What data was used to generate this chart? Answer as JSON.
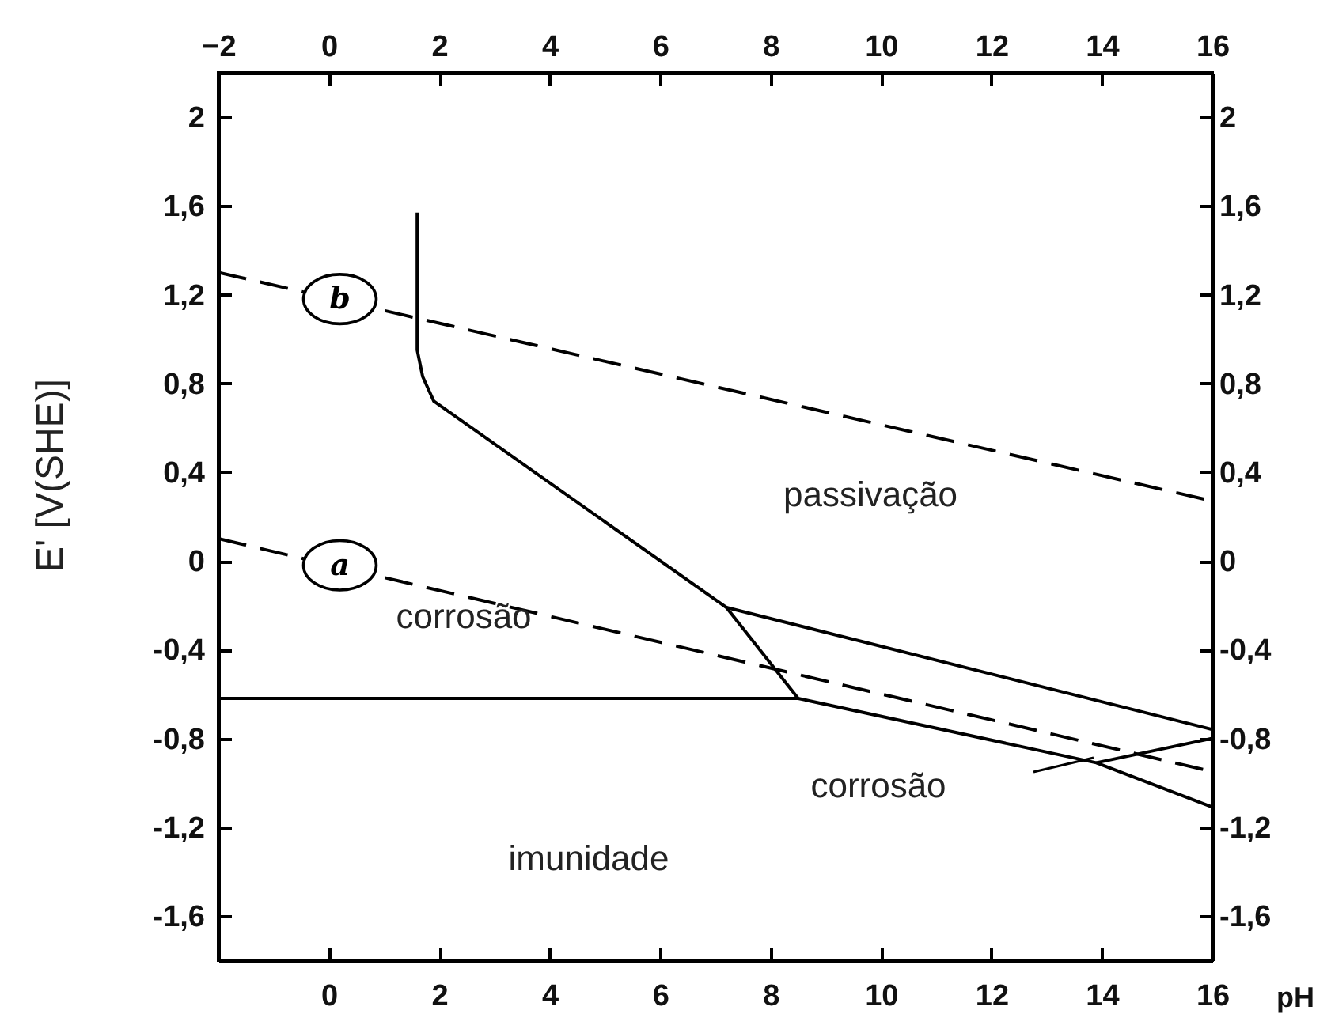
{
  "chart_data": {
    "type": "line",
    "xlabel": "pH",
    "ylabel": "E' [V(SHE)]",
    "xlim": [
      -2,
      16
    ],
    "xticks": [
      0,
      2,
      4,
      6,
      8,
      10,
      12,
      14,
      16
    ],
    "x2lim": [
      -2,
      16
    ],
    "x2ticks": [
      -2,
      0,
      2,
      4,
      6,
      8,
      10,
      12,
      14,
      16
    ],
    "ylim": [
      -1.8,
      2.2
    ],
    "yticks": [
      2,
      {
        "value": 1.6,
        "label": "1,6"
      },
      {
        "value": 1.2,
        "label": "1,2"
      },
      {
        "value": 0.8,
        "label": "0,8"
      },
      {
        "value": 0.4,
        "label": "0,4"
      },
      0,
      {
        "value": -0.4,
        "label": "-0,4"
      },
      {
        "value": -0.8,
        "label": "-0,8"
      },
      {
        "value": -1.2,
        "label": "-1,2"
      },
      {
        "value": -1.6,
        "label": "-1,6"
      }
    ],
    "y2lim": [
      -1.8,
      2.2
    ],
    "y2ticks": [
      2,
      {
        "value": 1.6,
        "label": "1,6"
      },
      {
        "value": 1.2,
        "label": "1,2"
      },
      {
        "value": 0.8,
        "label": "0,8"
      },
      {
        "value": 0.4,
        "label": "0,4"
      },
      0,
      {
        "value": -0.4,
        "label": "-0,4"
      },
      {
        "value": -0.8,
        "label": "-0,8"
      },
      {
        "value": -1.2,
        "label": "-1,2"
      },
      {
        "value": -1.6,
        "label": "-1,6"
      }
    ],
    "series": [
      {
        "color": "#000000",
        "line_style": "dashed",
        "x": [
          -2,
          16
        ],
        "values": [
          1.3,
          0.27
        ]
      },
      {
        "color": "#000000",
        "line_style": "dashed",
        "x": [
          -2,
          16
        ],
        "values": [
          0.1,
          -0.95
        ]
      },
      {
        "color": "#000000",
        "line_style": "solid",
        "x": [
          -2,
          8.5
        ],
        "values": [
          -0.62,
          -0.62
        ]
      },
      {
        "color": "#000000",
        "line_style": "solid",
        "x": [
          1.6,
          1.6,
          1.7,
          1.9,
          7.2,
          8.5,
          13.9,
          16
        ],
        "values": [
          1.57,
          0.95,
          0.83,
          0.72,
          -0.21,
          -0.62,
          -0.91,
          -1.11
        ]
      },
      {
        "color": "#000000",
        "line_style": "solid",
        "x": [
          7.2,
          16
        ],
        "values": [
          -0.21,
          -0.76
        ]
      },
      {
        "color": "#000000",
        "line_style": "solid",
        "x": [
          13.9,
          16
        ],
        "values": [
          -0.91,
          -0.8
        ]
      }
    ],
    "annotations": [
      {
        "text": "b",
        "x": 0.2,
        "y": 1.18
      },
      {
        "text": "a",
        "x": 0.2,
        "y": -0.02
      },
      "passivação",
      "corrosão",
      "corrosão",
      "imunidade"
    ]
  }
}
